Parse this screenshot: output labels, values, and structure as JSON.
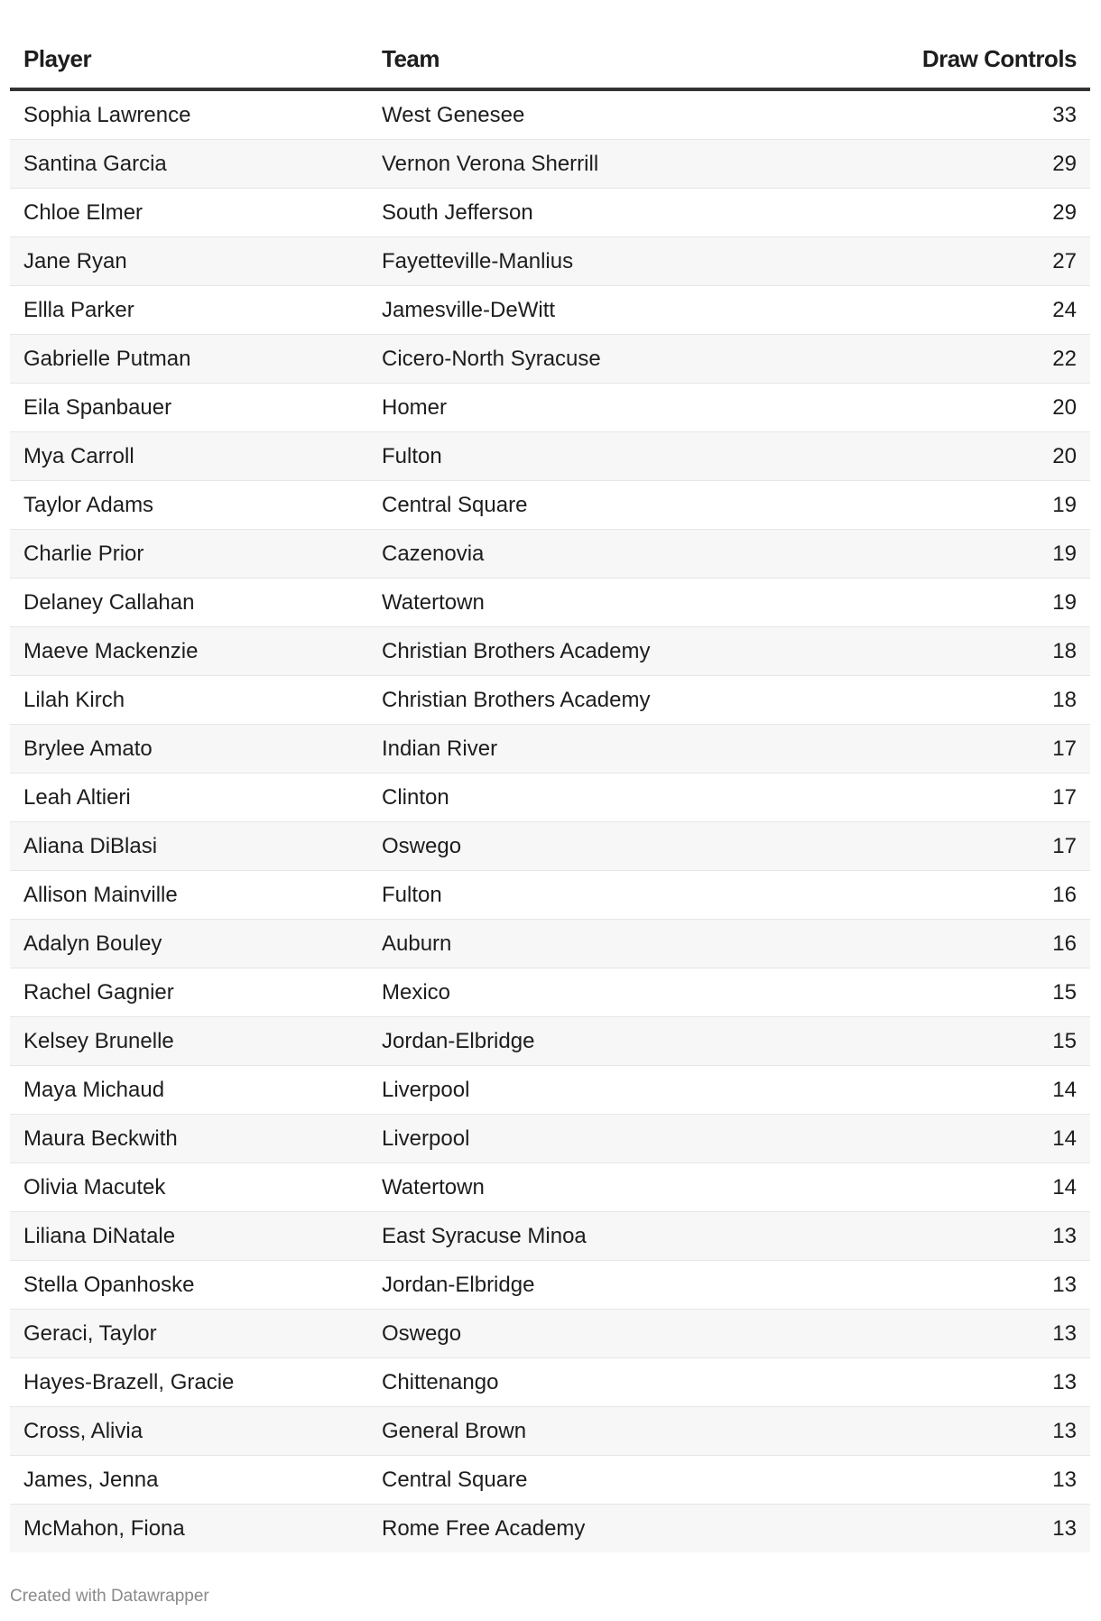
{
  "table": {
    "columns": [
      "Player",
      "Team",
      "Draw Controls"
    ],
    "rows": [
      [
        "Sophia Lawrence",
        "West Genesee",
        "33"
      ],
      [
        "Santina Garcia",
        "Vernon Verona Sherrill",
        "29"
      ],
      [
        "Chloe Elmer",
        "South Jefferson",
        "29"
      ],
      [
        "Jane Ryan",
        "Fayetteville-Manlius",
        "27"
      ],
      [
        "Ellla Parker",
        "Jamesville-DeWitt",
        "24"
      ],
      [
        "Gabrielle Putman",
        "Cicero-North Syracuse",
        "22"
      ],
      [
        "Eila Spanbauer",
        "Homer",
        "20"
      ],
      [
        "Mya Carroll",
        "Fulton",
        "20"
      ],
      [
        "Taylor Adams",
        "Central Square",
        "19"
      ],
      [
        "Charlie Prior",
        "Cazenovia",
        "19"
      ],
      [
        "Delaney Callahan",
        "Watertown",
        "19"
      ],
      [
        "Maeve Mackenzie",
        "Christian Brothers Academy",
        "18"
      ],
      [
        "Lilah Kirch",
        "Christian Brothers Academy",
        "18"
      ],
      [
        "Brylee Amato",
        "Indian River",
        "17"
      ],
      [
        "Leah Altieri",
        "Clinton",
        "17"
      ],
      [
        "Aliana DiBlasi",
        "Oswego",
        "17"
      ],
      [
        "Allison Mainville",
        "Fulton",
        "16"
      ],
      [
        "Adalyn Bouley",
        "Auburn",
        "16"
      ],
      [
        "Rachel Gagnier",
        "Mexico",
        "15"
      ],
      [
        "Kelsey Brunelle",
        "Jordan-Elbridge",
        "15"
      ],
      [
        "Maya Michaud",
        "Liverpool",
        "14"
      ],
      [
        "Maura Beckwith",
        "Liverpool",
        "14"
      ],
      [
        "Olivia Macutek",
        "Watertown",
        "14"
      ],
      [
        "Liliana DiNatale",
        "East Syracuse Minoa",
        "13"
      ],
      [
        "Stella Opanhoske",
        "Jordan-Elbridge",
        "13"
      ],
      [
        "Geraci, Taylor",
        "Oswego",
        "13"
      ],
      [
        "Hayes-Brazell, Gracie",
        "Chittenango",
        "13"
      ],
      [
        "Cross, Alivia",
        "General Brown",
        "13"
      ],
      [
        "James, Jenna",
        "Central Square",
        "13"
      ],
      [
        "McMahon, Fiona",
        "Rome Free Academy",
        "13"
      ]
    ]
  },
  "footer": "Created with Datawrapper",
  "colors": {
    "header_rule": "#333333",
    "stripe": "#f7f7f7",
    "row_border": "#e6e6e6",
    "footer_text": "#8a8a8a"
  }
}
